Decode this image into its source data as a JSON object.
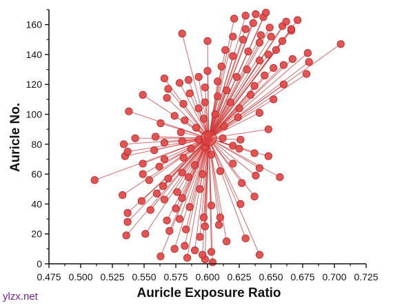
{
  "chart_data": {
    "type": "scatter",
    "title": "",
    "xlabel": "Auricle Exposure Ratio",
    "ylabel": "Auricle No.",
    "xlim": [
      0.475,
      0.725
    ],
    "ylim": [
      0,
      170
    ],
    "xticks": [
      "0.475",
      "0.500",
      "0.525",
      "0.550",
      "0.575",
      "0.600",
      "0.625",
      "0.650",
      "0.675",
      "0.700",
      "0.725"
    ],
    "yticks": [
      "0",
      "20",
      "40",
      "60",
      "80",
      "100",
      "120",
      "140",
      "160"
    ],
    "grid": false,
    "legend": "none",
    "center": {
      "x": 0.601,
      "y": 84
    },
    "colors": {
      "point": "#e04848",
      "point_edge": "#b32424",
      "line": "#d23c3c"
    },
    "points": [
      [
        0.604,
        1
      ],
      [
        0.598,
        3
      ],
      [
        0.584,
        4
      ],
      [
        0.596,
        6
      ],
      [
        0.641,
        6
      ],
      [
        0.603,
        8
      ],
      [
        0.59,
        9
      ],
      [
        0.563,
        5
      ],
      [
        0.574,
        10
      ],
      [
        0.582,
        12
      ],
      [
        0.615,
        15
      ],
      [
        0.63,
        17
      ],
      [
        0.594,
        18
      ],
      [
        0.536,
        19
      ],
      [
        0.551,
        20
      ],
      [
        0.57,
        22
      ],
      [
        0.583,
        23
      ],
      [
        0.598,
        25
      ],
      [
        0.609,
        26
      ],
      [
        0.537,
        28
      ],
      [
        0.568,
        29
      ],
      [
        0.578,
        30
      ],
      [
        0.597,
        31
      ],
      [
        0.61,
        31
      ],
      [
        0.537,
        34
      ],
      [
        0.555,
        36
      ],
      [
        0.575,
        37
      ],
      [
        0.586,
        38
      ],
      [
        0.603,
        39
      ],
      [
        0.626,
        40
      ],
      [
        0.548,
        42
      ],
      [
        0.566,
        43
      ],
      [
        0.58,
        44
      ],
      [
        0.637,
        45
      ],
      [
        0.533,
        46
      ],
      [
        0.56,
        47
      ],
      [
        0.576,
        48
      ],
      [
        0.594,
        50
      ],
      [
        0.565,
        52
      ],
      [
        0.627,
        54
      ],
      [
        0.511,
        56
      ],
      [
        0.554,
        56
      ],
      [
        0.569,
        57
      ],
      [
        0.585,
        58
      ],
      [
        0.596,
        60
      ],
      [
        0.638,
        59
      ],
      [
        0.657,
        58
      ],
      [
        0.549,
        60
      ],
      [
        0.58,
        61
      ],
      [
        0.61,
        62
      ],
      [
        0.641,
        64
      ],
      [
        0.562,
        65
      ],
      [
        0.59,
        66
      ],
      [
        0.549,
        67
      ],
      [
        0.62,
        67
      ],
      [
        0.566,
        70
      ],
      [
        0.581,
        71
      ],
      [
        0.535,
        72
      ],
      [
        0.603,
        73
      ],
      [
        0.637,
        74
      ],
      [
        0.648,
        72
      ],
      [
        0.537,
        75
      ],
      [
        0.558,
        76
      ],
      [
        0.587,
        77
      ],
      [
        0.625,
        77
      ],
      [
        0.598,
        78
      ],
      [
        0.62,
        79
      ],
      [
        0.534,
        80
      ],
      [
        0.566,
        81
      ],
      [
        0.58,
        82
      ],
      [
        0.593,
        83
      ],
      [
        0.612,
        84
      ],
      [
        0.626,
        83
      ],
      [
        0.543,
        84
      ],
      [
        0.559,
        85
      ],
      [
        0.6,
        86
      ],
      [
        0.579,
        88
      ],
      [
        0.648,
        90
      ],
      [
        0.591,
        91
      ],
      [
        0.613,
        92
      ],
      [
        0.563,
        94
      ],
      [
        0.582,
        96
      ],
      [
        0.597,
        97
      ],
      [
        0.624,
        98
      ],
      [
        0.574,
        99
      ],
      [
        0.606,
        100
      ],
      [
        0.641,
        101
      ],
      [
        0.538,
        102
      ],
      [
        0.593,
        104
      ],
      [
        0.625,
        104
      ],
      [
        0.581,
        107
      ],
      [
        0.598,
        108
      ],
      [
        0.618,
        108
      ],
      [
        0.652,
        110
      ],
      [
        0.568,
        111
      ],
      [
        0.608,
        112
      ],
      [
        0.634,
        113
      ],
      [
        0.549,
        113
      ],
      [
        0.586,
        114
      ],
      [
        0.615,
        116
      ],
      [
        0.569,
        117
      ],
      [
        0.598,
        118
      ],
      [
        0.637,
        119
      ],
      [
        0.66,
        120
      ],
      [
        0.578,
        121
      ],
      [
        0.608,
        122
      ],
      [
        0.585,
        123
      ],
      [
        0.566,
        124
      ],
      [
        0.593,
        125
      ],
      [
        0.623,
        125
      ],
      [
        0.645,
        126
      ],
      [
        0.678,
        127
      ],
      [
        0.6,
        129
      ],
      [
        0.631,
        130
      ],
      [
        0.652,
        131
      ],
      [
        0.611,
        132
      ],
      [
        0.66,
        133
      ],
      [
        0.68,
        135
      ],
      [
        0.641,
        136
      ],
      [
        0.667,
        137
      ],
      [
        0.62,
        139
      ],
      [
        0.648,
        140
      ],
      [
        0.679,
        141
      ],
      [
        0.632,
        142
      ],
      [
        0.654,
        143
      ],
      [
        0.614,
        143
      ],
      [
        0.705,
        147
      ],
      [
        0.641,
        148
      ],
      [
        0.659,
        149
      ],
      [
        0.6,
        149
      ],
      [
        0.628,
        150
      ],
      [
        0.65,
        152
      ],
      [
        0.62,
        152
      ],
      [
        0.642,
        153
      ],
      [
        0.58,
        154
      ],
      [
        0.666,
        156
      ],
      [
        0.63,
        157
      ],
      [
        0.649,
        158
      ],
      [
        0.659,
        159
      ],
      [
        0.671,
        163
      ],
      [
        0.662,
        162
      ],
      [
        0.636,
        161
      ],
      [
        0.621,
        164
      ],
      [
        0.644,
        165
      ],
      [
        0.63,
        166
      ],
      [
        0.638,
        167
      ],
      [
        0.646,
        168
      ],
      [
        0.666,
        157
      ]
    ]
  },
  "watermark": "ylzx.net"
}
